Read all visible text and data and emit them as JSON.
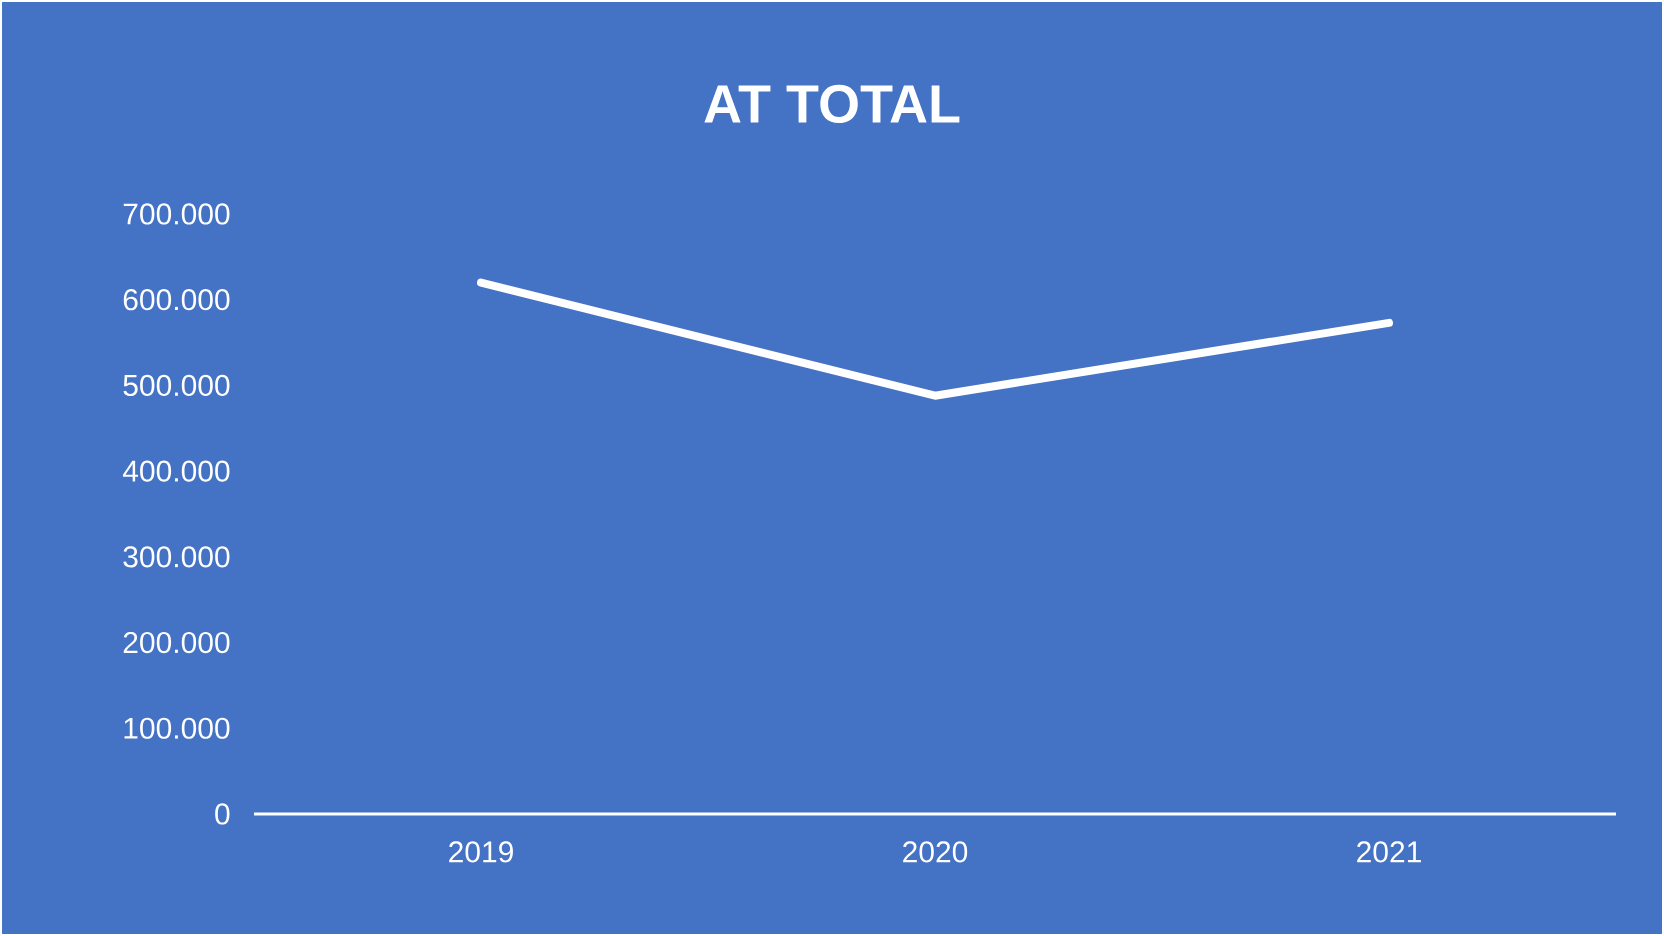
{
  "chart_data": {
    "type": "line",
    "title": "AT TOTAL",
    "categories": [
      "2019",
      "2020",
      "2021"
    ],
    "series": [
      {
        "color": "#ffffff",
        "values": [
          620000,
          488000,
          573000
        ]
      }
    ],
    "ylim": [
      0,
      700000
    ],
    "yticks": [
      0,
      {
        "value": 100000,
        "label": "100.000"
      },
      {
        "value": 200000,
        "label": "200.000"
      },
      {
        "value": 300000,
        "label": "300.000"
      },
      {
        "value": 400000,
        "label": "400.000"
      },
      {
        "value": 500000,
        "label": "500.000"
      },
      {
        "value": 600000,
        "label": "600.000"
      },
      {
        "value": 700000,
        "label": "700.000"
      }
    ],
    "grid": false,
    "legend": false,
    "marker": "none",
    "line_style": "solid"
  }
}
